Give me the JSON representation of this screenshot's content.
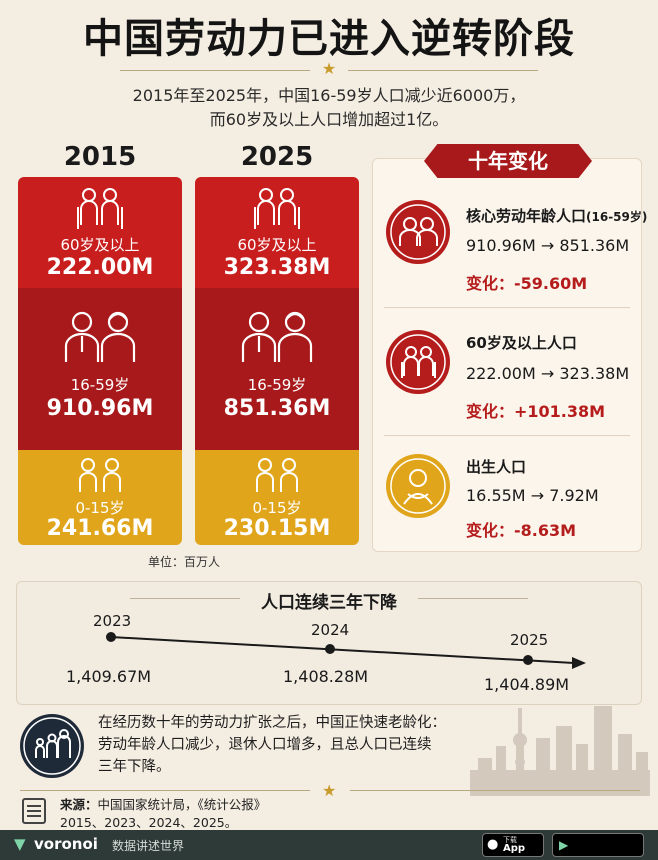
{
  "header": {
    "title": "中国劳动力已进入逆转阶段",
    "subtitle_line1": "2015年至2025年，中国16-59岁人口减少近6000万，",
    "subtitle_line2": "而60岁及以上人口增加超过1亿。"
  },
  "columns": [
    {
      "year": "2015",
      "old_label": "60岁及以上",
      "old_value": "222.00M",
      "mid_label": "16-59岁",
      "mid_value": "910.96M",
      "young_label": "0-15岁",
      "young_value": "241.66M"
    },
    {
      "year": "2025",
      "old_label": "60岁及以上",
      "old_value": "323.38M",
      "mid_label": "16-59岁",
      "mid_value": "851.36M",
      "young_label": "0-15岁",
      "young_value": "230.15M"
    }
  ],
  "unit_note": "单位：百万人",
  "changes": {
    "badge": "十年变化",
    "items": [
      {
        "title": "核心劳动年龄人口",
        "title_suffix": "(16-59岁)",
        "values": "910.96M → 851.36M",
        "delta": "变化：-59.60M"
      },
      {
        "title": "60岁及以上人口",
        "title_suffix": "",
        "values": "222.00M → 323.38M",
        "delta": "变化：+101.38M"
      },
      {
        "title": "出生人口",
        "title_suffix": "",
        "values": "16.55M → 7.92M",
        "delta": "变化：-8.63M"
      }
    ]
  },
  "timeline": {
    "title": "人口连续三年下降",
    "points": [
      {
        "year": "2023",
        "value": "1,409.67M"
      },
      {
        "year": "2024",
        "value": "1,408.28M"
      },
      {
        "year": "2025",
        "value": "1,404.89M"
      }
    ]
  },
  "conclusion": {
    "line1": "在经历数十年的劳动力扩张之后，中国正快速老龄化：",
    "line2": "劳动年龄人口减少，退休人口增多，且总人口已连续",
    "line3": "三年下降。"
  },
  "source": {
    "label": "来源：",
    "text1": "中国国家统计局，《统计公报》",
    "text2": "2015、2023、2024、2025。"
  },
  "footer": {
    "brand": "voronoi",
    "tagline": "数据讲述世界",
    "store_small": "下载",
    "store_big": "App"
  },
  "colors": {
    "red": "#c81e1e",
    "dark_red": "#a8191b",
    "gold": "#e0a51a",
    "background": "#f4ede2"
  }
}
